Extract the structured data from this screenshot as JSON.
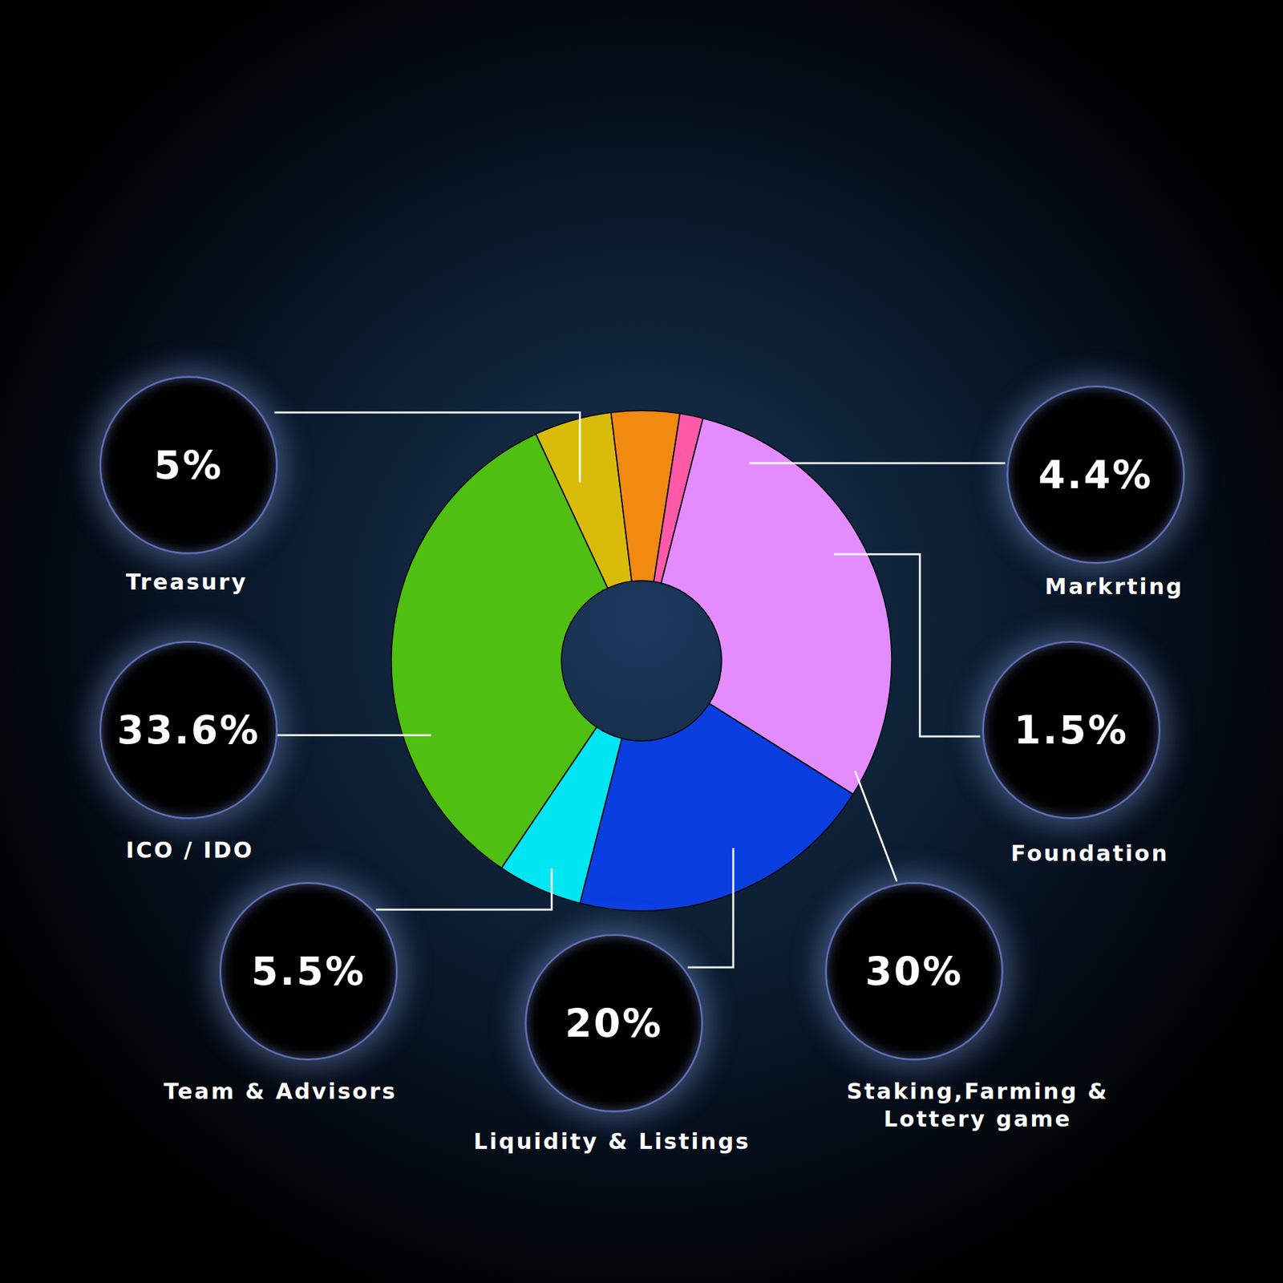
{
  "chart_data": {
    "type": "pie",
    "categories": [
      "Treasury",
      "Markrting",
      "Foundation",
      "Staking,Farming & Lottery game",
      "Liquidity & Listings",
      "Team & Advisors",
      "ICO / IDO"
    ],
    "values": [
      5,
      4.4,
      1.5,
      30,
      20,
      5.5,
      33.6
    ],
    "value_labels": [
      "5%",
      "4.4%",
      "1.5%",
      "30%",
      "20%",
      "5.5%",
      "33.6%"
    ],
    "colors": [
      "#d9bc0a",
      "#f28a12",
      "#ff5aa8",
      "#e48cff",
      "#0a3ee0",
      "#00e6f2",
      "#4fc012"
    ],
    "data_labels": true
  }
}
